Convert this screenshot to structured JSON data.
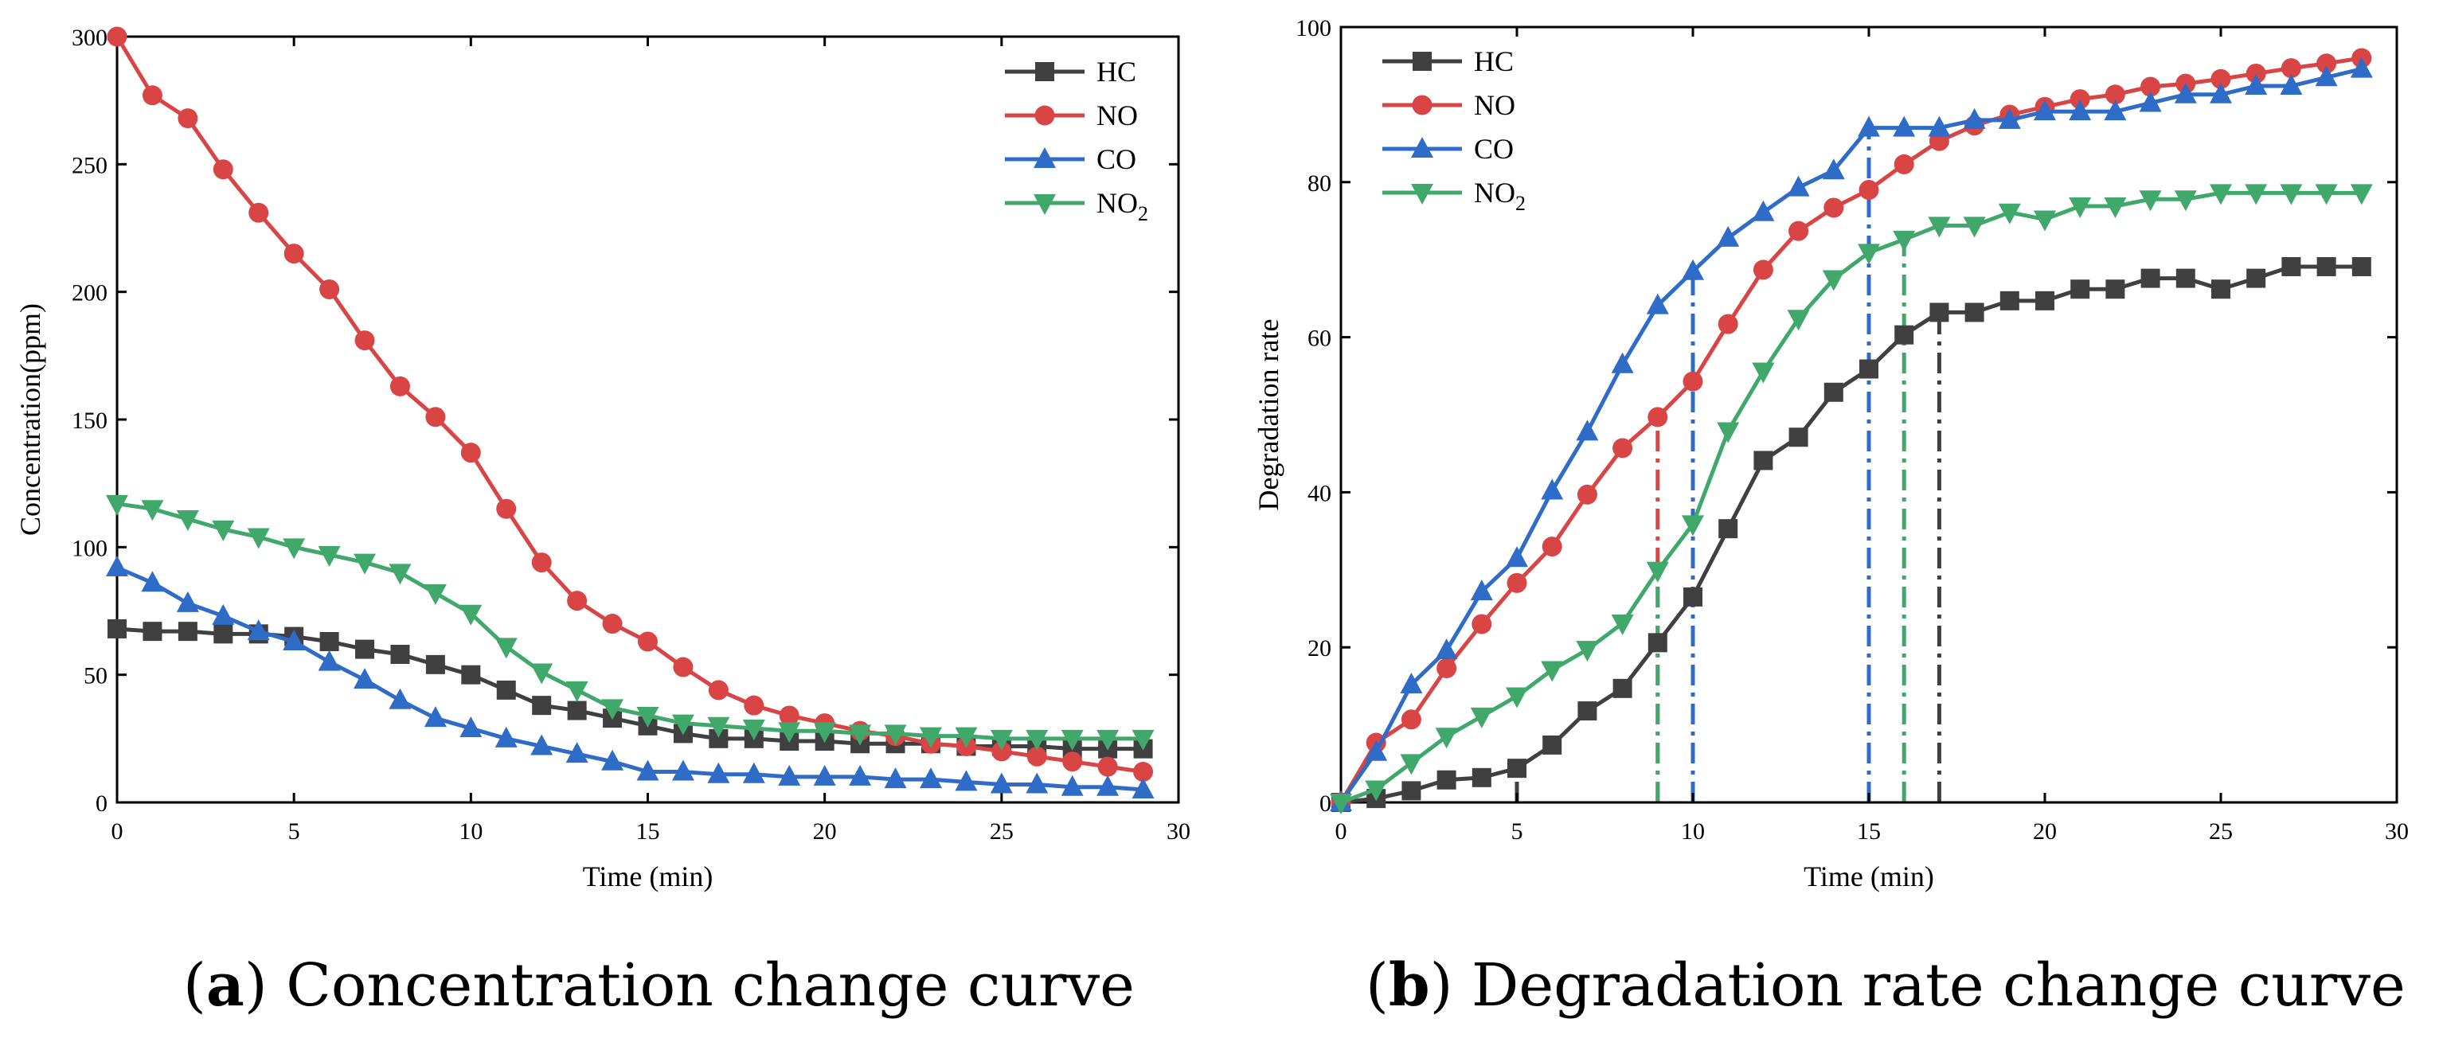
{
  "chart_data": [
    {
      "type": "line",
      "panel": "a",
      "title": "",
      "xlabel": "Time (min)",
      "ylabel": "Concentration(ppm)",
      "xlim": [
        0,
        30
      ],
      "ylim": [
        0,
        300
      ],
      "xticks": [
        0,
        5,
        10,
        15,
        20,
        25,
        30
      ],
      "yticks": [
        0,
        50,
        100,
        150,
        200,
        250,
        300
      ],
      "legend_position": "top-right",
      "x": [
        0,
        1,
        2,
        3,
        4,
        5,
        6,
        7,
        8,
        9,
        10,
        11,
        12,
        13,
        14,
        15,
        16,
        17,
        18,
        19,
        20,
        21,
        22,
        23,
        24,
        25,
        26,
        27,
        28,
        29
      ],
      "series": [
        {
          "name": "HC",
          "color": "#404040",
          "marker": "square",
          "values": [
            68,
            67,
            67,
            66,
            66,
            65,
            63,
            60,
            58,
            54,
            50,
            44,
            38,
            36,
            33,
            30,
            27,
            25,
            25,
            24,
            24,
            23,
            23,
            23,
            22,
            22,
            22,
            21,
            21,
            21
          ]
        },
        {
          "name": "NO",
          "color": "#d94545",
          "marker": "circle",
          "values": [
            300,
            277,
            268,
            248,
            231,
            215,
            201,
            181,
            163,
            151,
            137,
            115,
            94,
            79,
            70,
            63,
            53,
            44,
            38,
            34,
            31,
            28,
            26,
            23,
            22,
            20,
            18,
            16,
            14,
            12
          ]
        },
        {
          "name": "CO",
          "color": "#2f6cc8",
          "marker": "triangle-up",
          "values": [
            92,
            86,
            78,
            73,
            67,
            63,
            55,
            48,
            40,
            33,
            29,
            25,
            22,
            19,
            16,
            12,
            12,
            11,
            11,
            10,
            10,
            10,
            9,
            9,
            8,
            7,
            7,
            6,
            6,
            5
          ]
        },
        {
          "name": "NO2",
          "label_main": "NO",
          "label_sub": "2",
          "color": "#3fa86a",
          "marker": "triangle-down",
          "values": [
            117,
            115,
            111,
            107,
            104,
            100,
            97,
            94,
            90,
            82,
            74,
            61,
            51,
            44,
            37,
            34,
            31,
            30,
            29,
            28,
            28,
            27,
            27,
            26,
            26,
            25,
            25,
            25,
            25,
            25
          ]
        }
      ]
    },
    {
      "type": "line",
      "panel": "b",
      "title": "",
      "xlabel": "Time (min)",
      "ylabel": "Degradation rate",
      "xlim": [
        0,
        30
      ],
      "ylim": [
        0,
        100
      ],
      "xticks": [
        0,
        5,
        10,
        15,
        20,
        25,
        30
      ],
      "yticks": [
        0,
        20,
        40,
        60,
        80,
        100
      ],
      "legend_position": "top-left",
      "x": [
        0,
        1,
        2,
        3,
        4,
        5,
        6,
        7,
        8,
        9,
        10,
        11,
        12,
        13,
        14,
        15,
        16,
        17,
        18,
        19,
        20,
        21,
        22,
        23,
        24,
        25,
        26,
        27,
        28,
        29
      ],
      "series": [
        {
          "name": "HC",
          "color": "#404040",
          "marker": "square",
          "values": [
            0,
            0.5,
            1.5,
            2.9,
            3.2,
            4.4,
            7.4,
            11.8,
            14.7,
            20.6,
            26.5,
            35.3,
            44.1,
            47.1,
            52.9,
            55.9,
            60.3,
            63.2,
            63.2,
            64.7,
            64.7,
            66.2,
            66.2,
            67.6,
            67.6,
            66.2,
            67.6,
            69.1,
            69.1,
            69.1
          ]
        },
        {
          "name": "NO",
          "color": "#d94545",
          "marker": "circle",
          "values": [
            0,
            7.7,
            10.7,
            17.3,
            23,
            28.3,
            33,
            39.7,
            45.7,
            49.7,
            54.3,
            61.7,
            68.7,
            73.7,
            76.7,
            79,
            82.3,
            85.3,
            87.3,
            88.7,
            89.7,
            90.7,
            91.3,
            92.3,
            92.7,
            93.3,
            94,
            94.7,
            95.3,
            96
          ]
        },
        {
          "name": "CO",
          "color": "#2f6cc8",
          "marker": "triangle-up",
          "values": [
            0,
            6.5,
            15.2,
            19.6,
            27.2,
            31.5,
            40.2,
            47.8,
            56.5,
            64.1,
            68.5,
            72.8,
            76.1,
            79.3,
            81.5,
            87,
            87,
            87,
            88,
            88,
            89.1,
            89.1,
            89.1,
            90.2,
            91.3,
            91.3,
            92.4,
            92.4,
            93.5,
            94.6
          ]
        },
        {
          "name": "NO2",
          "label_main": "NO",
          "label_sub": "2",
          "color": "#3fa86a",
          "marker": "triangle-down",
          "values": [
            0,
            1.7,
            5.1,
            8.5,
            11.1,
            13.7,
            17.1,
            19.7,
            23.1,
            29.9,
            35.9,
            47.9,
            55.6,
            62.4,
            67.5,
            70.9,
            72.6,
            74.4,
            74.4,
            76.1,
            75.2,
            76.9,
            76.9,
            77.8,
            77.8,
            78.6,
            78.6,
            78.6,
            78.6,
            78.6
          ]
        }
      ],
      "reference_lines": [
        {
          "series": "HC",
          "x": 5,
          "y": 4.4
        },
        {
          "series": "HC",
          "x": 17,
          "y": 63.2
        },
        {
          "series": "NO",
          "x": 9,
          "y": 49.7
        },
        {
          "series": "NO",
          "x": 15,
          "y": 79
        },
        {
          "series": "CO",
          "x": 10,
          "y": 68.5
        },
        {
          "series": "CO",
          "x": 15,
          "y": 87
        },
        {
          "series": "NO2",
          "x": 9,
          "y": 29.9
        },
        {
          "series": "NO2",
          "x": 16,
          "y": 72.6
        }
      ]
    }
  ],
  "captions": {
    "a": {
      "letter": "a",
      "text": " Concentration change curve"
    },
    "b": {
      "letter": "b",
      "text": " Degradation rate change curve"
    }
  }
}
